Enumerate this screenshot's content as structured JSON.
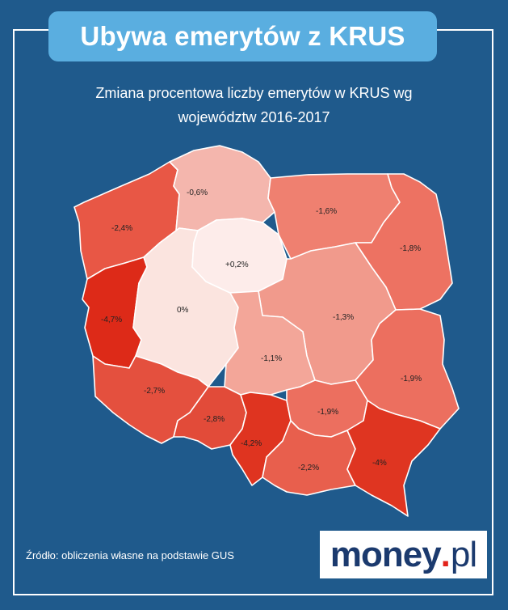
{
  "header": {
    "title": "Ubywa emerytów z KRUS",
    "subtitle_line1": "Zmiana procentowa liczby emerytów w KRUS wg",
    "subtitle_line2": "województw 2016-2017"
  },
  "map": {
    "regions": [
      {
        "id": "zachodniopomorskie",
        "value": "-2,4%",
        "color": "#e85745"
      },
      {
        "id": "pomorskie",
        "value": "-0,6%",
        "color": "#f4b6ad"
      },
      {
        "id": "warminsko-mazurskie",
        "value": "-1,6%",
        "color": "#ef8070"
      },
      {
        "id": "podlaskie",
        "value": "-1,8%",
        "color": "#ed7262"
      },
      {
        "id": "lubuskie",
        "value": "-4,7%",
        "color": "#dd2a18"
      },
      {
        "id": "wielkopolskie",
        "value": "0%",
        "color": "#fbe4df"
      },
      {
        "id": "kujawsko-pomorskie",
        "value": "+0,2%",
        "color": "#fdecea"
      },
      {
        "id": "mazowieckie",
        "value": "-1,3%",
        "color": "#f19a8c"
      },
      {
        "id": "lodzkie",
        "value": "-1,1%",
        "color": "#f3a699"
      },
      {
        "id": "lubelskie",
        "value": "-1,9%",
        "color": "#ec6f5f"
      },
      {
        "id": "dolnoslaskie",
        "value": "-2,7%",
        "color": "#e4503e"
      },
      {
        "id": "opolskie",
        "value": "-2,8%",
        "color": "#e24b39"
      },
      {
        "id": "slaskie",
        "value": "-4,2%",
        "color": "#df3420"
      },
      {
        "id": "swietokrzyskie",
        "value": "-1,9%",
        "color": "#ec6f5f"
      },
      {
        "id": "malopolskie",
        "value": "-2,2%",
        "color": "#e85f4d"
      },
      {
        "id": "podkarpackie",
        "value": "-4%",
        "color": "#df3521"
      }
    ]
  },
  "footer": {
    "source": "Źródło: obliczenia własne na podstawie GUS",
    "logo_main": "money",
    "logo_dot": ".",
    "logo_tld": "pl"
  }
}
